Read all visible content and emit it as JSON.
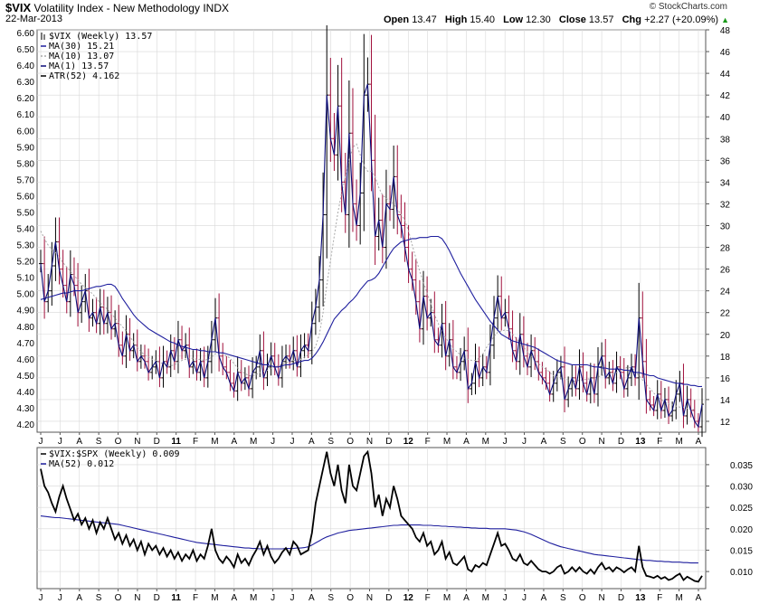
{
  "header": {
    "symbol": "$VIX",
    "name": "Volatility Index - New Methodology",
    "exchange": "INDX",
    "date": "22-Mar-2013",
    "brand": "© StockCharts.com",
    "open_label": "Open",
    "open": "13.47",
    "high_label": "High",
    "high": "15.40",
    "low_label": "Low",
    "low": "12.30",
    "close_label": "Close",
    "close": "13.57",
    "chg_label": "Chg",
    "chg": "+2.27 (+20.09%)"
  },
  "colors": {
    "up": "#000000",
    "down": "#a0103c",
    "ma30": "#1f1f9e",
    "ma10": "#a8a8a8",
    "ma1": "#0b0b78",
    "ratio": "#000000",
    "ma52": "#1f1f9e",
    "grid": "#d8d8d8"
  },
  "chart_data": [
    {
      "type": "line",
      "title": "$VIX (Weekly) 13.57",
      "series_labels": {
        "price": "$VIX (Weekly) 13.57",
        "ma30": "MA(30) 15.21",
        "ma10": "MA(10) 13.07",
        "ma1": "MA(1) 13.57",
        "atr": "ATR(52) 4.162"
      },
      "left_axis_ticks": [
        "6.60",
        "6.50",
        "6.40",
        "6.30",
        "6.20",
        "6.10",
        "6.00",
        "5.90",
        "5.80",
        "5.70",
        "5.60",
        "5.50",
        "5.40",
        "5.30",
        "5.20",
        "5.10",
        "5.00",
        "4.90",
        "4.80",
        "4.70",
        "4.60",
        "4.50",
        "4.40",
        "4.30",
        "4.20"
      ],
      "right_axis_ticks": [
        "48",
        "46",
        "44",
        "42",
        "40",
        "38",
        "36",
        "34",
        "32",
        "30",
        "28",
        "26",
        "24",
        "22",
        "20",
        "18",
        "16",
        "14",
        "12"
      ],
      "ylim": [
        11,
        48
      ],
      "x_tick_labels": [
        "J",
        "J",
        "A",
        "S",
        "O",
        "N",
        "D",
        "11",
        "F",
        "M",
        "A",
        "M",
        "J",
        "J",
        "A",
        "S",
        "O",
        "N",
        "D",
        "12",
        "F",
        "M",
        "A",
        "M",
        "J",
        "J",
        "A",
        "S",
        "O",
        "N",
        "D",
        "13",
        "F",
        "M",
        "A"
      ],
      "close": [
        26.5,
        23.0,
        24.0,
        26.3,
        28.5,
        26.0,
        24.5,
        23.0,
        25.5,
        24.5,
        22.0,
        23.0,
        24.0,
        21.5,
        22.0,
        21.0,
        22.5,
        21.0,
        22.0,
        20.5,
        21.0,
        19.0,
        18.0,
        20.0,
        18.5,
        19.0,
        17.5,
        18.0,
        17.5,
        16.5,
        17.0,
        17.5,
        16.0,
        17.5,
        17.0,
        18.5,
        17.5,
        19.5,
        18.5,
        19.0,
        17.0,
        17.5,
        16.5,
        17.5,
        16.0,
        17.5,
        19.5,
        21.5,
        18.0,
        17.0,
        16.5,
        15.5,
        14.8,
        16.5,
        15.5,
        16.0,
        15.0,
        16.5,
        17.0,
        18.5,
        16.0,
        17.0,
        18.0,
        17.0,
        16.0,
        17.5,
        18.0,
        17.5,
        18.5,
        17.0,
        18.5,
        19.0,
        18.5,
        21.0,
        22.5,
        25.0,
        31.0,
        42.0,
        38.0,
        36.5,
        41.0,
        34.0,
        31.0,
        38.5,
        32.0,
        30.0,
        33.0,
        42.0,
        43.0,
        36.0,
        29.0,
        30.5,
        28.0,
        32.0,
        31.5,
        34.5,
        31.0,
        30.0,
        28.0,
        26.0,
        25.0,
        23.0,
        20.5,
        23.5,
        21.5,
        22.0,
        19.5,
        19.0,
        21.0,
        18.0,
        19.5,
        17.0,
        16.5,
        17.5,
        18.5,
        15.0,
        15.5,
        17.5,
        16.0,
        17.0,
        16.5,
        19.0,
        21.5,
        23.5,
        21.5,
        22.0,
        20.5,
        18.5,
        17.5,
        20.0,
        18.0,
        17.0,
        18.5,
        17.5,
        16.5,
        16.0,
        15.5,
        14.5,
        15.5,
        16.5,
        17.0,
        14.0,
        15.0,
        16.0,
        15.0,
        17.0,
        15.5,
        14.5,
        16.0,
        14.5,
        17.0,
        18.0,
        16.0,
        16.5,
        15.5,
        17.0,
        16.5,
        15.0,
        16.0,
        17.0,
        16.0,
        21.5,
        17.5,
        14.0,
        13.5,
        13.0,
        14.5,
        13.0,
        14.0,
        12.5,
        13.0,
        14.5,
        15.5,
        12.5,
        14.0,
        13.0,
        12.0,
        11.5,
        13.57
      ],
      "ma30": [
        23.2,
        23.3,
        23.4,
        23.5,
        23.6,
        23.7,
        23.8,
        23.8,
        23.9,
        24.0,
        24.0,
        24.0,
        24.1,
        24.2,
        24.3,
        24.4,
        24.4,
        24.5,
        24.6,
        24.6,
        24.4,
        23.9,
        23.3,
        22.8,
        22.3,
        21.8,
        21.4,
        21.1,
        20.8,
        20.5,
        20.3,
        20.1,
        19.9,
        19.7,
        19.5,
        19.3,
        19.2,
        19.0,
        18.9,
        18.8,
        18.7,
        18.6,
        18.6,
        18.5,
        18.5,
        18.4,
        18.4,
        18.4,
        18.3,
        18.3,
        18.2,
        18.1,
        18.0,
        17.9,
        17.8,
        17.7,
        17.6,
        17.5,
        17.4,
        17.3,
        17.2,
        17.2,
        17.1,
        17.0,
        17.0,
        17.1,
        17.2,
        17.2,
        17.3,
        17.4,
        17.5,
        17.6,
        17.6,
        17.8,
        18.2,
        18.7,
        19.3,
        20.0,
        20.7,
        21.4,
        21.8,
        22.2,
        22.5,
        22.9,
        23.2,
        23.6,
        24.1,
        24.5,
        24.9,
        25.0,
        25.2,
        25.6,
        26.2,
        26.8,
        27.4,
        27.9,
        28.2,
        28.5,
        28.6,
        28.7,
        28.8,
        28.8,
        28.9,
        28.9,
        28.9,
        29.0,
        29.0,
        29.0,
        28.8,
        28.3,
        27.7,
        27.0,
        26.3,
        25.6,
        25.0,
        24.4,
        23.8,
        23.2,
        22.7,
        22.2,
        21.7,
        21.2,
        20.8,
        20.4,
        20.0,
        19.8,
        19.6,
        19.4,
        19.3,
        19.2,
        19.1,
        19.0,
        18.9,
        18.8,
        18.6,
        18.4,
        18.2,
        18.0,
        17.8,
        17.6,
        17.5,
        17.4,
        17.3,
        17.2,
        17.2,
        17.2,
        17.2,
        17.2,
        17.1,
        17.0,
        17.0,
        16.9,
        16.9,
        16.8,
        16.8,
        16.8,
        16.8,
        16.7,
        16.7,
        16.6,
        16.5,
        16.5,
        16.4,
        16.3,
        16.2,
        16.2,
        16.0,
        15.9,
        15.8,
        15.7,
        15.6,
        15.5,
        15.5,
        15.4,
        15.4,
        15.3,
        15.3,
        15.2,
        15.21
      ],
      "ma10": [
        29.5,
        28.8,
        28.2,
        27.8,
        27.5,
        27.1,
        26.6,
        26.2,
        25.8,
        25.4,
        25.0,
        24.6,
        24.3,
        24.0,
        23.7,
        23.3,
        22.9,
        22.6,
        22.3,
        21.9,
        21.5,
        21.1,
        20.7,
        20.3,
        19.8,
        19.3,
        18.8,
        18.4,
        18.1,
        17.9,
        17.7,
        17.6,
        17.4,
        17.3,
        17.2,
        17.1,
        17.2,
        17.4,
        17.6,
        17.7,
        17.8,
        17.8,
        17.7,
        17.7,
        17.6,
        17.7,
        17.9,
        18.2,
        18.3,
        18.2,
        18.0,
        17.8,
        17.3,
        16.9,
        16.6,
        16.4,
        16.2,
        16.2,
        16.3,
        16.5,
        16.6,
        16.7,
        16.9,
        17.0,
        17.1,
        17.2,
        17.4,
        17.5,
        17.6,
        17.6,
        17.7,
        17.9,
        18.1,
        18.4,
        18.9,
        20.0,
        22.0,
        24.5,
        26.8,
        29.0,
        31.2,
        33.0,
        34.5,
        36.0,
        37.2,
        37.5,
        36.5,
        35.5,
        35.0,
        35.0,
        34.5,
        33.5,
        32.8,
        32.5,
        32.3,
        32.0,
        31.5,
        31.0,
        30.5,
        29.5,
        28.2,
        27.0,
        25.8,
        24.8,
        23.8,
        22.8,
        21.8,
        21.0,
        20.3,
        19.7,
        19.2,
        18.7,
        18.4,
        18.1,
        17.8,
        17.7,
        17.6,
        17.6,
        17.8,
        18.2,
        18.8,
        19.3,
        19.8,
        20.2,
        20.3,
        20.4,
        20.3,
        20.0,
        19.6,
        19.2,
        18.8,
        18.4,
        18.0,
        17.6,
        17.3,
        17.0,
        16.8,
        16.5,
        16.2,
        16.1,
        16.0,
        15.9,
        15.8,
        15.7,
        15.7,
        15.8,
        15.8,
        15.9,
        15.9,
        16.0,
        16.1,
        16.2,
        16.3,
        16.4,
        16.4,
        16.5,
        16.6,
        16.8,
        17.0,
        16.9,
        16.6,
        16.2,
        15.8,
        15.4,
        15.0,
        14.6,
        14.3,
        14.0,
        13.8,
        13.6,
        13.5,
        13.4,
        13.3,
        13.3,
        13.2,
        13.1,
        13.07
      ],
      "high_low_sample": {
        "max_high": 48.0,
        "min_low": 11.0
      }
    },
    {
      "type": "line",
      "title": "$VIX:$SPX (Weekly) 0.009",
      "series_labels": {
        "ratio": "$VIX:$SPX (Weekly) 0.009",
        "ma52": "MA(52) 0.012"
      },
      "right_axis_ticks": [
        "0.035",
        "0.030",
        "0.025",
        "0.020",
        "0.015",
        "0.010"
      ],
      "ylim": [
        0.006,
        0.039
      ],
      "x_tick_labels": [
        "J",
        "J",
        "A",
        "S",
        "O",
        "N",
        "D",
        "11",
        "F",
        "M",
        "A",
        "M",
        "J",
        "J",
        "A",
        "S",
        "O",
        "N",
        "D",
        "12",
        "F",
        "M",
        "A",
        "M",
        "J",
        "J",
        "A",
        "S",
        "O",
        "N",
        "D",
        "13",
        "F",
        "M",
        "A"
      ],
      "ratio": [
        0.034,
        0.03,
        0.0285,
        0.026,
        0.024,
        0.0275,
        0.03,
        0.027,
        0.0245,
        0.022,
        0.0235,
        0.021,
        0.0225,
        0.02,
        0.022,
        0.019,
        0.0215,
        0.02,
        0.0225,
        0.02,
        0.0175,
        0.019,
        0.0165,
        0.0185,
        0.016,
        0.0175,
        0.015,
        0.017,
        0.014,
        0.0165,
        0.015,
        0.016,
        0.014,
        0.0155,
        0.0135,
        0.015,
        0.013,
        0.0145,
        0.0125,
        0.014,
        0.013,
        0.015,
        0.0125,
        0.014,
        0.013,
        0.016,
        0.02,
        0.015,
        0.013,
        0.012,
        0.0135,
        0.0125,
        0.011,
        0.014,
        0.012,
        0.013,
        0.0115,
        0.0135,
        0.015,
        0.017,
        0.014,
        0.016,
        0.0135,
        0.012,
        0.013,
        0.0145,
        0.0155,
        0.014,
        0.017,
        0.016,
        0.014,
        0.0145,
        0.015,
        0.019,
        0.026,
        0.03,
        0.034,
        0.038,
        0.033,
        0.03,
        0.035,
        0.029,
        0.026,
        0.035,
        0.03,
        0.029,
        0.033,
        0.037,
        0.038,
        0.033,
        0.025,
        0.028,
        0.023,
        0.027,
        0.025,
        0.03,
        0.027,
        0.023,
        0.022,
        0.021,
        0.02,
        0.018,
        0.017,
        0.019,
        0.016,
        0.017,
        0.014,
        0.015,
        0.017,
        0.013,
        0.0145,
        0.012,
        0.0115,
        0.0125,
        0.0135,
        0.0105,
        0.01,
        0.0115,
        0.011,
        0.012,
        0.0115,
        0.014,
        0.0165,
        0.019,
        0.016,
        0.0165,
        0.015,
        0.013,
        0.0125,
        0.014,
        0.012,
        0.0115,
        0.0125,
        0.0115,
        0.0105,
        0.01,
        0.01,
        0.0095,
        0.01,
        0.011,
        0.0115,
        0.0095,
        0.01,
        0.011,
        0.01,
        0.011,
        0.01,
        0.0095,
        0.0105,
        0.0095,
        0.011,
        0.012,
        0.0105,
        0.011,
        0.01,
        0.011,
        0.0105,
        0.0098,
        0.0105,
        0.011,
        0.01,
        0.016,
        0.011,
        0.009,
        0.0088,
        0.0085,
        0.009,
        0.0083,
        0.0087,
        0.008,
        0.0083,
        0.009,
        0.0095,
        0.008,
        0.0088,
        0.0083,
        0.0078,
        0.0076,
        0.009
      ],
      "ma52": [
        0.023,
        0.0229,
        0.0228,
        0.0227,
        0.0226,
        0.0226,
        0.0225,
        0.0224,
        0.0223,
        0.0222,
        0.0221,
        0.022,
        0.0219,
        0.0218,
        0.0217,
        0.0216,
        0.0215,
        0.0214,
        0.0213,
        0.0212,
        0.0211,
        0.021,
        0.0208,
        0.0206,
        0.0204,
        0.0202,
        0.02,
        0.0198,
        0.0196,
        0.0194,
        0.0192,
        0.019,
        0.0188,
        0.0186,
        0.0184,
        0.0182,
        0.018,
        0.0178,
        0.0176,
        0.0174,
        0.0172,
        0.017,
        0.0168,
        0.0167,
        0.0166,
        0.0165,
        0.0164,
        0.0163,
        0.0162,
        0.0161,
        0.016,
        0.0159,
        0.0158,
        0.0157,
        0.0156,
        0.0155,
        0.0155,
        0.0154,
        0.0154,
        0.0153,
        0.0153,
        0.0153,
        0.0153,
        0.0153,
        0.0153,
        0.0153,
        0.0154,
        0.0154,
        0.0154,
        0.0155,
        0.0155,
        0.0156,
        0.0158,
        0.0162,
        0.0167,
        0.0172,
        0.0177,
        0.0181,
        0.0184,
        0.0187,
        0.019,
        0.0192,
        0.0194,
        0.0196,
        0.0197,
        0.0198,
        0.0199,
        0.02,
        0.0201,
        0.0202,
        0.0203,
        0.0204,
        0.0205,
        0.0206,
        0.0207,
        0.0208,
        0.0208,
        0.0209,
        0.0209,
        0.0209,
        0.0209,
        0.0209,
        0.0209,
        0.0208,
        0.0208,
        0.0208,
        0.0207,
        0.0207,
        0.0206,
        0.0206,
        0.0205,
        0.0205,
        0.0204,
        0.0204,
        0.0203,
        0.0203,
        0.0202,
        0.0202,
        0.0201,
        0.0201,
        0.0201,
        0.02,
        0.02,
        0.02,
        0.02,
        0.02,
        0.0199,
        0.0198,
        0.0197,
        0.0195,
        0.0193,
        0.019,
        0.0187,
        0.0183,
        0.0179,
        0.0175,
        0.0171,
        0.0167,
        0.0164,
        0.0161,
        0.0158,
        0.0156,
        0.0154,
        0.0152,
        0.015,
        0.0148,
        0.0146,
        0.0144,
        0.0142,
        0.014,
        0.0139,
        0.0138,
        0.0137,
        0.0136,
        0.0135,
        0.0134,
        0.0133,
        0.0132,
        0.0131,
        0.013,
        0.0129,
        0.0128,
        0.0127,
        0.0126,
        0.0126,
        0.0125,
        0.0124,
        0.0124,
        0.0123,
        0.0123,
        0.0122,
        0.0122,
        0.0122,
        0.0121,
        0.0121,
        0.012,
        0.012,
        0.012
      ]
    }
  ]
}
